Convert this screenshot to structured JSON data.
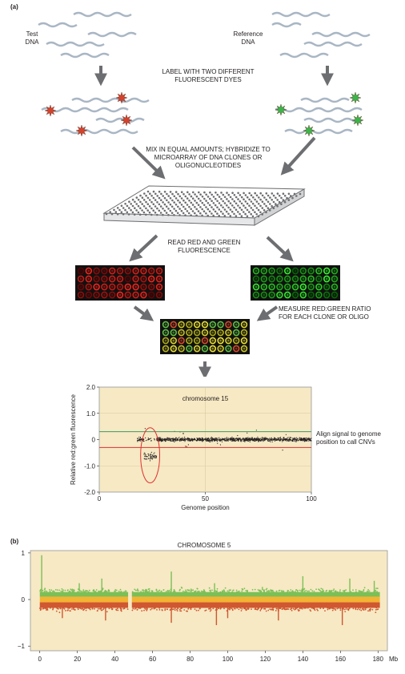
{
  "panel_a": {
    "tag": "(a)",
    "test_label": [
      "Test",
      "DNA"
    ],
    "reference_label": [
      "Reference",
      "DNA"
    ],
    "step_label": [
      "LABEL WITH TWO DIFFERENT",
      "FLUORESCENT DYES"
    ],
    "step_mix": [
      "MIX IN EQUAL AMOUNTS; HYBRIDIZE TO",
      "MICROARRAY OF DNA CLONES OR",
      "OLIGONUCLEOTIDES"
    ],
    "step_read": [
      "READ RED AND GREEN",
      "FLUORESCENCE"
    ],
    "step_measure": [
      "MEASURE RED:GREEN RATIO",
      "FOR EACH CLONE OR OLIGO"
    ],
    "align_note": [
      "Align signal to genome",
      "position to call CNVs"
    ],
    "colors": {
      "test_dye": "#d2432d",
      "reference_dye": "#3bb54a",
      "dna_strand": "#a9b6c4",
      "arrow": "#6d6e71"
    }
  },
  "chart_a": {
    "type": "scatter",
    "title": "chromosome 15",
    "xlabel": "Genome position",
    "ylabel": "Relative red:green fluorescence",
    "xlim": [
      0,
      100
    ],
    "ylim": [
      -2.0,
      2.0
    ],
    "x_ticks": [
      "0",
      "50",
      "100"
    ],
    "y_ticks": [
      "2.0",
      "1.0",
      "0",
      "-1.0",
      "-2.0"
    ],
    "upper_threshold": 0.3,
    "lower_threshold": -0.3,
    "data_start": 18,
    "data_end": 100,
    "deletion_region": [
      21,
      27
    ],
    "deletion_mean": -0.65,
    "background": "#f6e9c4",
    "threshold_upper_color": "#3e9a63",
    "threshold_lower_color": "#d83131"
  },
  "panel_b": {
    "tag": "(b)",
    "title": "CHROMOSOME 5",
    "x_ticks": [
      "0",
      "20",
      "40",
      "60",
      "80",
      "100",
      "120",
      "140",
      "160",
      "180"
    ],
    "x_unit": "Mb",
    "y_ticks": [
      "1",
      "0",
      "−1"
    ],
    "xlim": [
      -5,
      185
    ],
    "ylim": [
      -1.1,
      1.05
    ],
    "centromere_gap": [
      47,
      49
    ],
    "data_end": 181,
    "background": "#f6e9c4",
    "colors": {
      "gain": "#7cbf57",
      "neutral": "#f3b333",
      "loss": "#cf5731"
    }
  }
}
